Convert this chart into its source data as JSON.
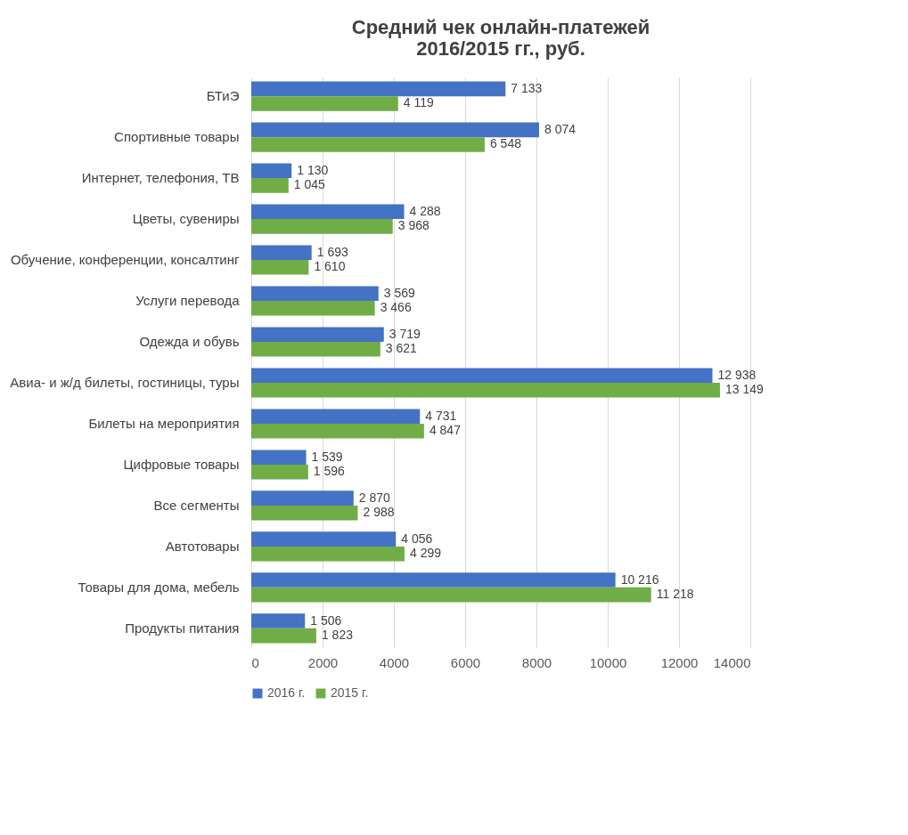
{
  "chart_data": {
    "type": "bar",
    "orientation": "horizontal",
    "title": "Средний чек онлайн-платежей\n2016/2015 гг., руб.",
    "categories": [
      "БТиЭ",
      "Спортивные товары",
      "Интернет, телефония, ТВ",
      "Цветы, сувениры",
      "Обучение, конференции, консалтинг",
      "Услуги перевода",
      "Одежда и обувь",
      "Авиа- и ж/д билеты, гостиницы, туры",
      "Билеты на мероприятия",
      "Цифровые товары",
      "Все сегменты",
      "Автотовары",
      "Товары для дома, мебель",
      "Продукты питания"
    ],
    "series": [
      {
        "name": "2016 г.",
        "color": "#4472c4",
        "values": [
          7133,
          8074,
          1130,
          4288,
          1693,
          3569,
          3719,
          12938,
          4731,
          1539,
          2870,
          4056,
          10216,
          1506
        ]
      },
      {
        "name": "2015 г.",
        "color": "#70ad47",
        "values": [
          4119,
          6548,
          1045,
          3968,
          1610,
          3466,
          3621,
          13149,
          4847,
          1596,
          2988,
          4299,
          11218,
          1823
        ]
      }
    ],
    "xlim": [
      0,
      14000
    ],
    "xticks": [
      0,
      2000,
      4000,
      6000,
      8000,
      10000,
      12000,
      14000
    ],
    "grid": "x",
    "legend": "bottom",
    "data_labels": true
  }
}
